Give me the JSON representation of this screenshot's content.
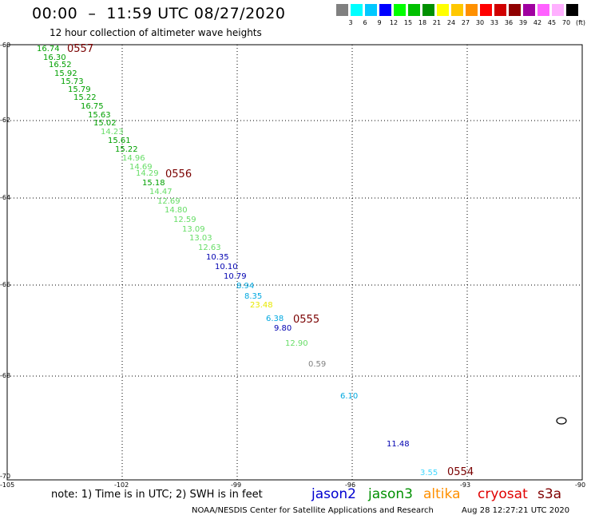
{
  "header": {
    "title": "00:00  –  11:59 UTC 08/27/2020",
    "subtitle": "12 hour collection of altimeter wave heights"
  },
  "color_scale": {
    "colors": [
      "#808080",
      "#00ffff",
      "#00c8ff",
      "#0000ff",
      "#00ff00",
      "#00c000",
      "#009000",
      "#ffff00",
      "#ffc800",
      "#ff9000",
      "#ff0000",
      "#d00000",
      "#900000",
      "#a000a0",
      "#ff60ff",
      "#ffb0ff",
      "#000000"
    ],
    "labels": [
      "3",
      "6",
      "9",
      "12",
      "15",
      "18",
      "21",
      "24",
      "27",
      "30",
      "33",
      "36",
      "39",
      "42",
      "45",
      "70",
      "(ft)"
    ]
  },
  "axes": {
    "lat_labels": [
      "-60",
      "-62",
      "-64",
      "-66",
      "-68",
      "-70"
    ],
    "lon_labels": [
      "-105",
      "-102",
      "-99",
      "-96",
      "-93",
      "-90"
    ]
  },
  "readings": [
    {
      "v": "16.74",
      "c": "#00a000"
    },
    {
      "v": "16.30",
      "c": "#00a000"
    },
    {
      "v": "16.52",
      "c": "#00a000"
    },
    {
      "v": "15.92",
      "c": "#00a000"
    },
    {
      "v": "15.73",
      "c": "#00a000"
    },
    {
      "v": "15.79",
      "c": "#00a000"
    },
    {
      "v": "15.22",
      "c": "#00a000"
    },
    {
      "v": "16.75",
      "c": "#00a000"
    },
    {
      "v": "15.63",
      "c": "#00a000"
    },
    {
      "v": "15.02",
      "c": "#00a000"
    },
    {
      "v": "14.23",
      "c": "#66dd66"
    },
    {
      "v": "15.61",
      "c": "#00a000"
    },
    {
      "v": "15.22",
      "c": "#00a000"
    },
    {
      "v": "14.96",
      "c": "#66dd66"
    },
    {
      "v": "14.69",
      "c": "#66dd66"
    },
    {
      "v": "14.29",
      "c": "#66dd66"
    },
    {
      "v": "15.18",
      "c": "#00a000"
    },
    {
      "v": "14.47",
      "c": "#66dd66"
    },
    {
      "v": "12.69",
      "c": "#66dd66"
    },
    {
      "v": "14.80",
      "c": "#66dd66"
    },
    {
      "v": "12.59",
      "c": "#66dd66"
    },
    {
      "v": "13.09",
      "c": "#66dd66"
    },
    {
      "v": "13.03",
      "c": "#66dd66"
    },
    {
      "v": "12.63",
      "c": "#66dd66"
    },
    {
      "v": "10.35",
      "c": "#0000b0"
    },
    {
      "v": "10.10",
      "c": "#0000b0"
    },
    {
      "v": "10.79",
      "c": "#0000b0"
    },
    {
      "v": "8.94",
      "c": "#00a8e0"
    },
    {
      "v": "8.35",
      "c": "#00a8e0"
    },
    {
      "v": "23.48",
      "c": "#e8e800"
    },
    {
      "v": "6.38",
      "c": "#00a8e0"
    },
    {
      "v": "9.80",
      "c": "#0000b0"
    },
    {
      "v": "12.90",
      "c": "#66dd66"
    },
    {
      "v": "0.59",
      "c": "#808080"
    },
    {
      "v": "6.10",
      "c": "#00a8e0"
    },
    {
      "v": "11.48",
      "c": "#0000b0"
    },
    {
      "v": "3.55",
      "c": "#40d8ff"
    }
  ],
  "passes": [
    "0557",
    "0556",
    "0555",
    "0554"
  ],
  "footer": {
    "note": "note: 1) Time is in UTC; 2) SWH is in feet",
    "legend": [
      {
        "name": "jason2",
        "color": "#0000d0"
      },
      {
        "name": "jason3",
        "color": "#009000"
      },
      {
        "name": "altika",
        "color": "#ff9000"
      },
      {
        "name": "cryosat",
        "color": "#e00000"
      },
      {
        "name": "s3a",
        "color": "#800000"
      }
    ],
    "credit": "NOAA/NESDIS Center for Satellite Applications and Research",
    "timestamp": "Aug 28 12:27:21 UTC 2020"
  }
}
